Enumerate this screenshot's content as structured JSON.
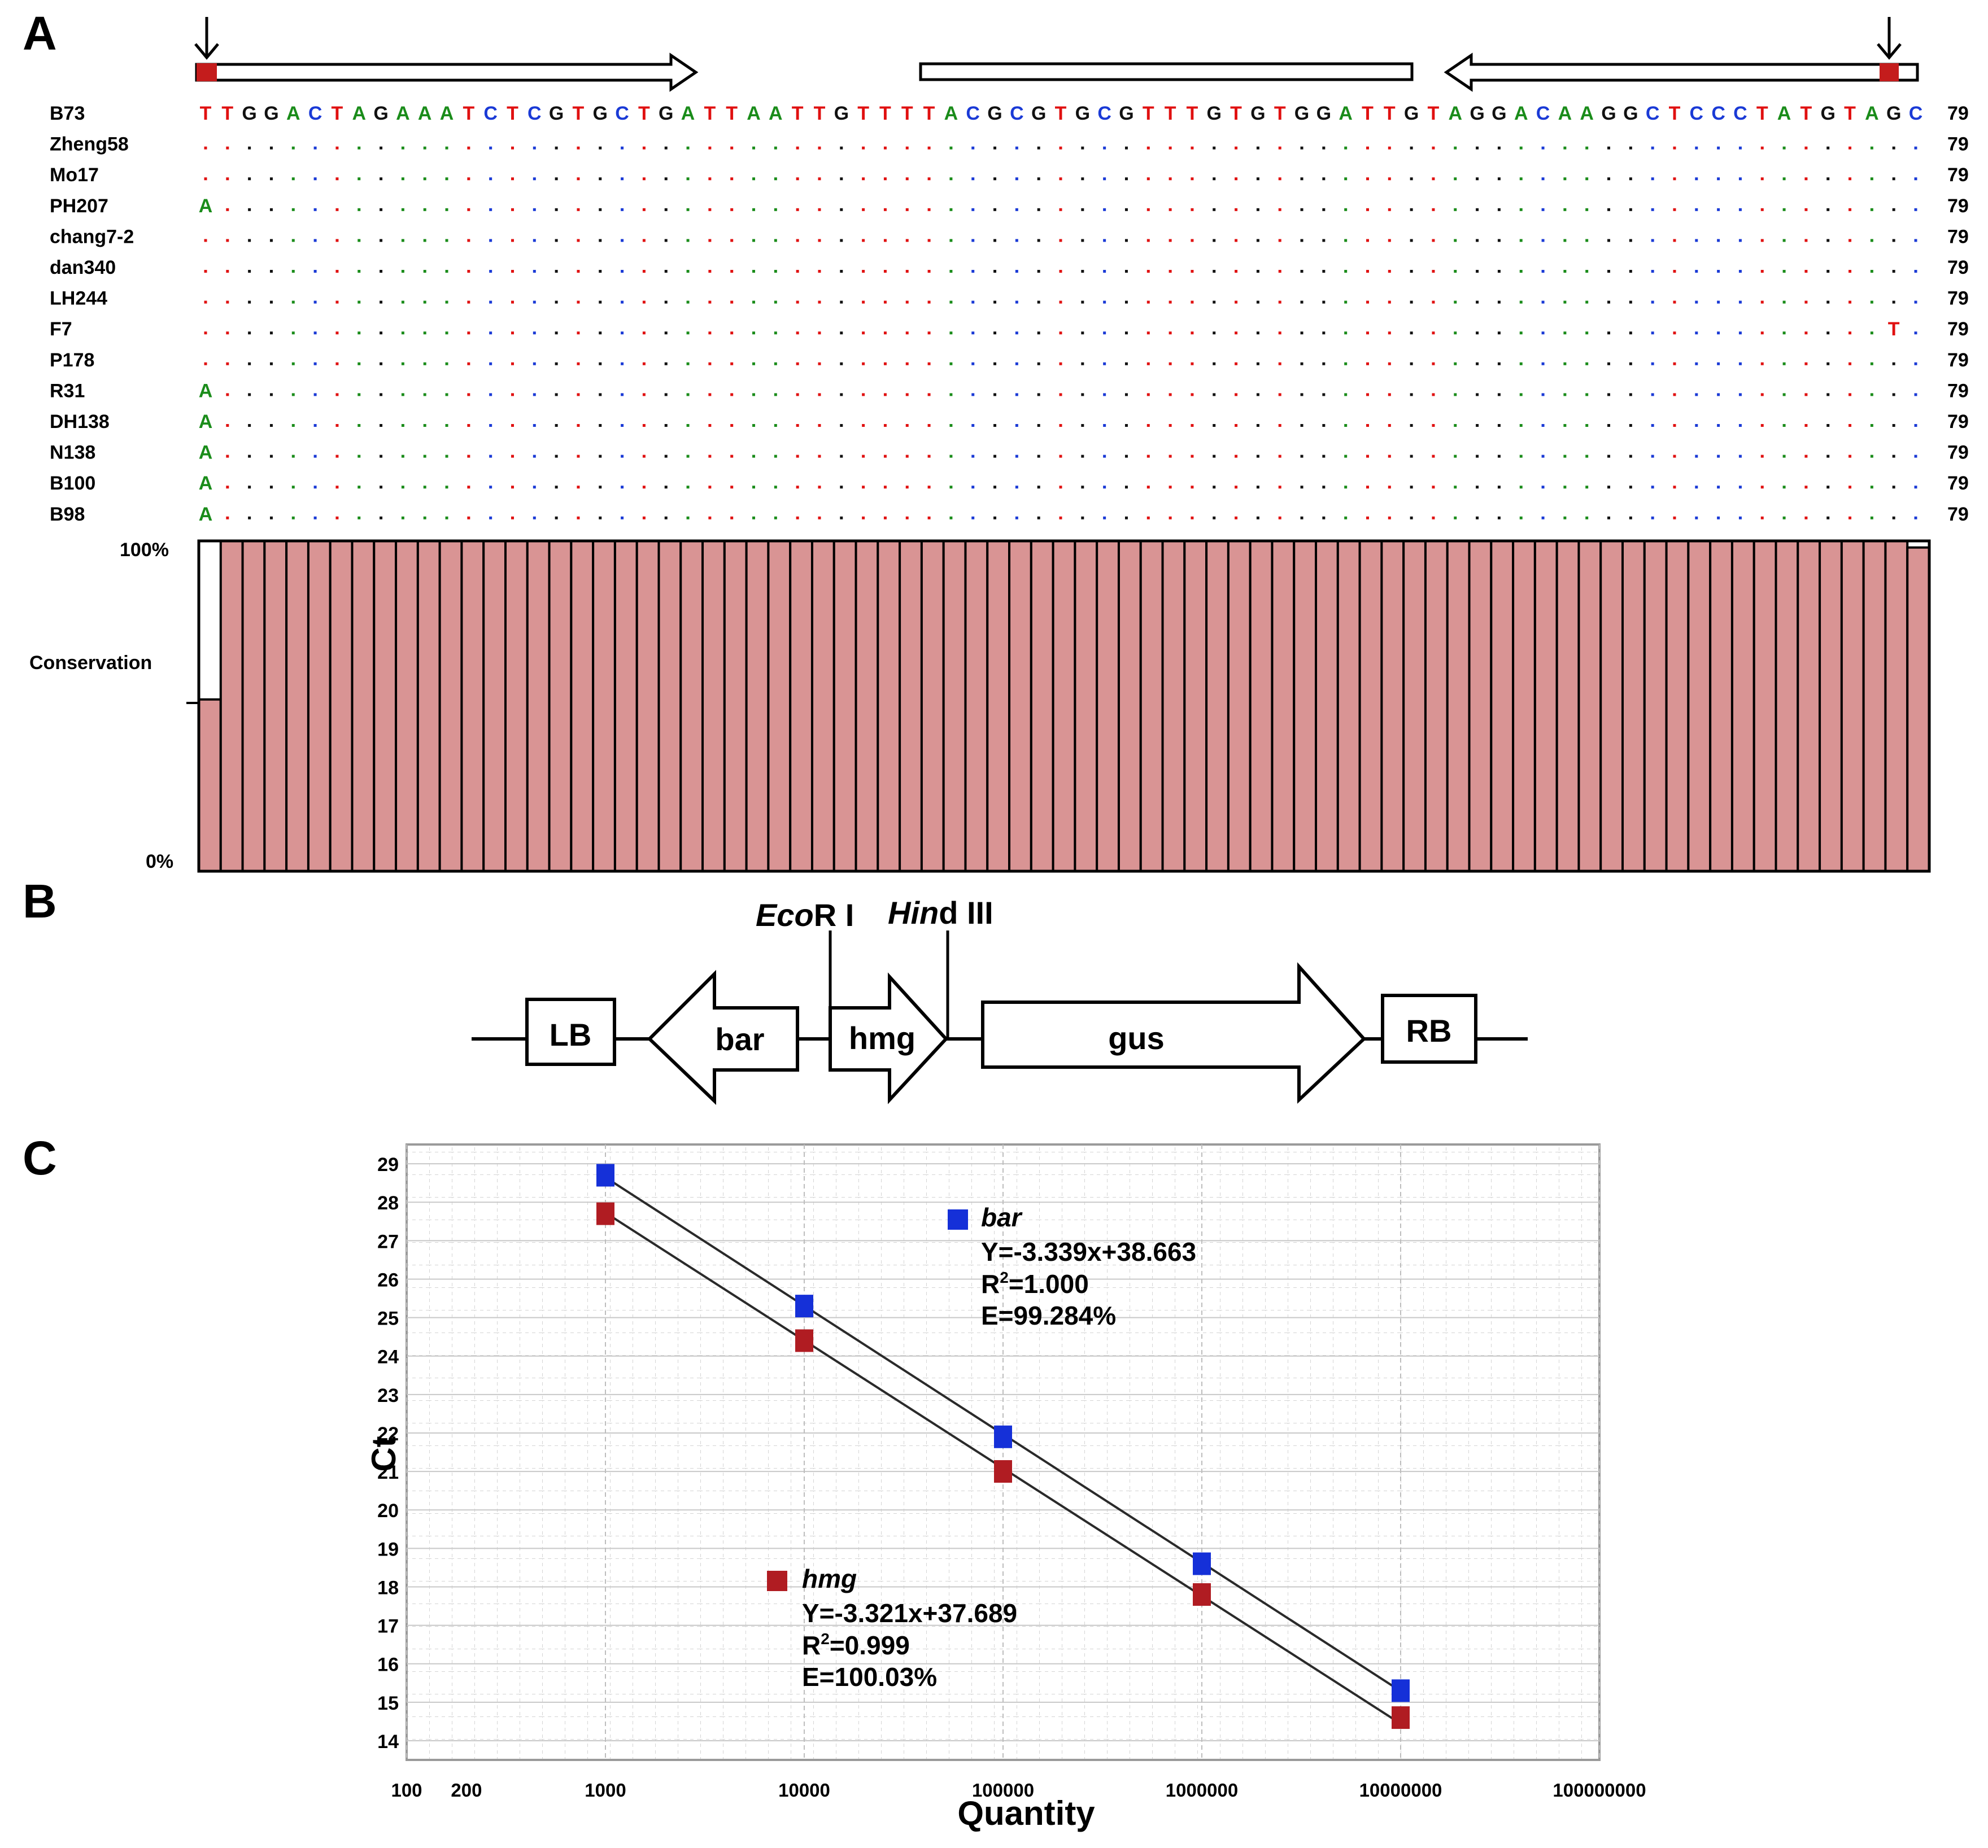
{
  "panel_labels": {
    "a": "A",
    "b": "B",
    "c": "C"
  },
  "alignment": {
    "reference_name": "B73",
    "reference_sequence": "TTGGACTAGAAATCTCGTGCTGATTAATTGTTTTACGCGTGCGTTTGTGTGGATTGTAGGACAAGGCTCCCTATGTAGC",
    "length_label": "79",
    "strains": [
      {
        "name": "Zheng58",
        "variants": []
      },
      {
        "name": "Mo17",
        "variants": []
      },
      {
        "name": "PH207",
        "variants": [
          {
            "pos": 0,
            "base": "A"
          }
        ]
      },
      {
        "name": "chang7-2",
        "variants": []
      },
      {
        "name": "dan340",
        "variants": []
      },
      {
        "name": "LH244",
        "variants": []
      },
      {
        "name": "F7",
        "variants": [
          {
            "pos": 77,
            "base": "T"
          }
        ]
      },
      {
        "name": "P178",
        "variants": []
      },
      {
        "name": "R31",
        "variants": [
          {
            "pos": 0,
            "base": "A"
          }
        ]
      },
      {
        "name": "DH138",
        "variants": [
          {
            "pos": 0,
            "base": "A"
          }
        ]
      },
      {
        "name": "N138",
        "variants": [
          {
            "pos": 0,
            "base": "A"
          }
        ]
      },
      {
        "name": "B100",
        "variants": [
          {
            "pos": 0,
            "base": "A"
          }
        ]
      },
      {
        "name": "B98",
        "variants": [
          {
            "pos": 0,
            "base": "A"
          }
        ]
      }
    ],
    "base_colors": {
      "A": "#1a8c1a",
      "C": "#1a3ad6",
      "G": "#111111",
      "T": "#e01010"
    },
    "marker_color": "#c41c1c",
    "conservation": {
      "label": "Conservation",
      "top_label": "100%",
      "bottom_label": "0%",
      "bar_color": "#d99494",
      "first_value": 0.52,
      "last_value": 0.98,
      "default_value": 1.0
    }
  },
  "construct": {
    "elements": {
      "lb": "LB",
      "bar": "bar",
      "hmg": "hmg",
      "gus": "gus",
      "rb": "RB"
    },
    "ecori": {
      "italic": "Eco",
      "roman": "R I"
    },
    "hindiii": {
      "italic": "Hin",
      "roman": "d III"
    }
  },
  "chart_data": {
    "type": "scatter",
    "title": "",
    "xlabel": "Quantity",
    "ylabel": "Ct",
    "x_scale": "log",
    "xlim": [
      100,
      100000000
    ],
    "ylim": [
      14,
      29
    ],
    "x_tick_labels": [
      "100",
      "200",
      "1000",
      "10000",
      "100000",
      "1000000",
      "10000000",
      "100000000"
    ],
    "y_ticks": [
      14,
      15,
      16,
      17,
      18,
      19,
      20,
      21,
      22,
      23,
      24,
      25,
      26,
      27,
      28,
      29
    ],
    "grid": true,
    "series": [
      {
        "name": "bar",
        "color": "#1530d8",
        "x": [
          1000,
          10000,
          100000,
          1000000,
          10000000
        ],
        "y": [
          28.7,
          25.3,
          21.9,
          18.6,
          15.3
        ],
        "fit": {
          "slope": -3.339,
          "intercept": 38.663
        },
        "equation": "Y=-3.339x+38.663",
        "r2_prefix": "R",
        "r2_sup": "2",
        "r2_value": "=1.000",
        "efficiency": "E=99.284%"
      },
      {
        "name": "hmg",
        "color": "#b01c22",
        "x": [
          1000,
          10000,
          100000,
          1000000,
          10000000
        ],
        "y": [
          27.7,
          24.4,
          21.0,
          17.8,
          14.6
        ],
        "fit": {
          "slope": -3.321,
          "intercept": 37.689
        },
        "equation": "Y=-3.321x+37.689",
        "r2_prefix": "R",
        "r2_sup": "2",
        "r2_value": "=0.999",
        "efficiency": "E=100.03%"
      }
    ]
  }
}
